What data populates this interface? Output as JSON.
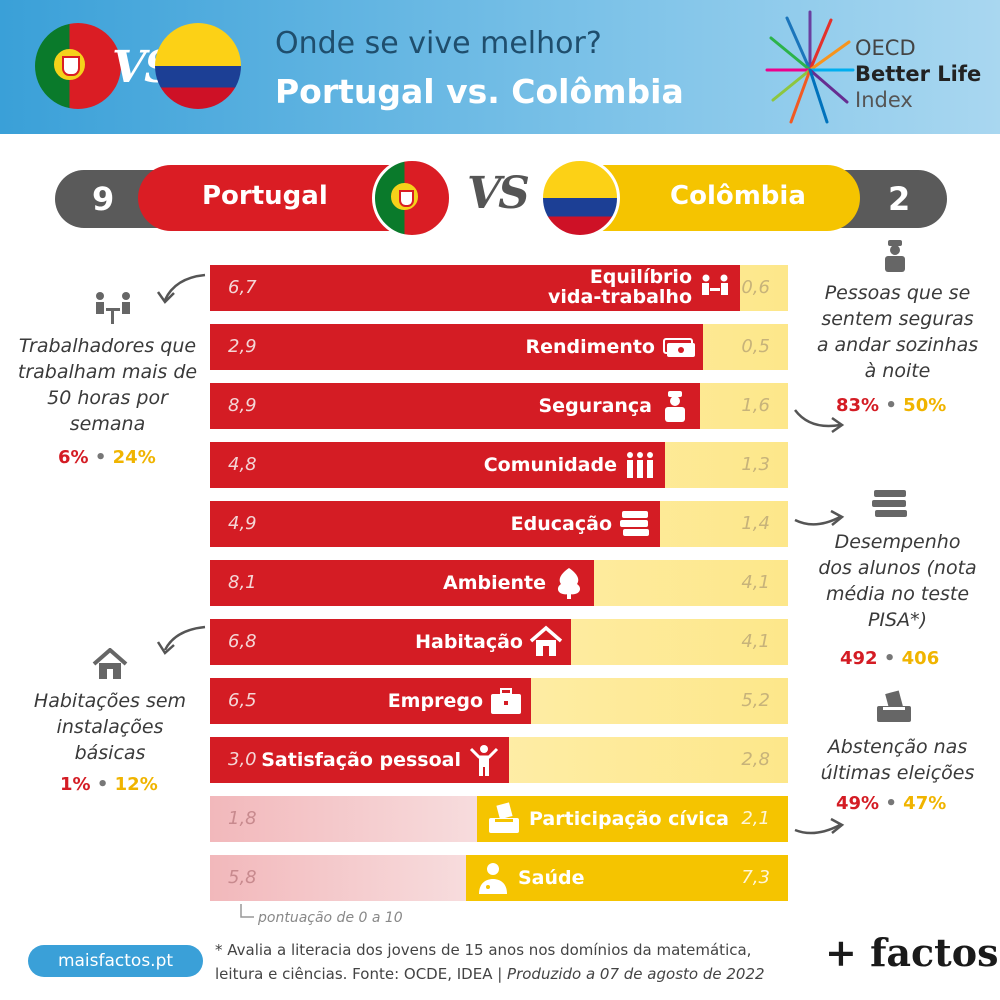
{
  "header": {
    "title": "Onde se vive melhor?",
    "subtitle": "Portugal vs. Colômbia",
    "vs": "VS",
    "oecd_line1": "OECD",
    "oecd_line2": "Better Life",
    "oecd_line3": "Index"
  },
  "score": {
    "left_value": "9",
    "left_country": "Portugal",
    "vs": "VS",
    "right_country": "Colômbia",
    "right_value": "2"
  },
  "rows": [
    {
      "label": "Equilíbrio",
      "label2": "vida-trabalho",
      "pt": "6,7",
      "co": "0,6",
      "pt_score": 6.7,
      "co_score": 0.6,
      "winner": "pt",
      "icon": "work-life-icon"
    },
    {
      "label": "Rendimento",
      "pt": "2,9",
      "co": "0,5",
      "pt_score": 2.9,
      "co_score": 0.5,
      "winner": "pt",
      "icon": "money-icon"
    },
    {
      "label": "Segurança",
      "pt": "8,9",
      "co": "1,6",
      "pt_score": 8.9,
      "co_score": 1.6,
      "winner": "pt",
      "icon": "police-icon"
    },
    {
      "label": "Comunidade",
      "pt": "4,8",
      "co": "1,3",
      "pt_score": 4.8,
      "co_score": 1.3,
      "winner": "pt",
      "icon": "people-icon"
    },
    {
      "label": "Educação",
      "pt": "4,9",
      "co": "1,4",
      "pt_score": 4.9,
      "co_score": 1.4,
      "winner": "pt",
      "icon": "books-icon"
    },
    {
      "label": "Ambiente",
      "pt": "8,1",
      "co": "4,1",
      "pt_score": 8.1,
      "co_score": 4.1,
      "winner": "pt",
      "icon": "tree-icon"
    },
    {
      "label": "Habitação",
      "pt": "6,8",
      "co": "4,1",
      "pt_score": 6.8,
      "co_score": 4.1,
      "winner": "pt",
      "icon": "house-icon"
    },
    {
      "label": "Emprego",
      "pt": "6,5",
      "co": "5,2",
      "pt_score": 6.5,
      "co_score": 5.2,
      "winner": "pt",
      "icon": "briefcase-icon"
    },
    {
      "label": "Satisfação pessoal",
      "pt": "3,0",
      "co": "2,8",
      "pt_score": 3.0,
      "co_score": 2.8,
      "winner": "pt",
      "icon": "person-happy-icon"
    },
    {
      "label": "Participação cívica",
      "pt": "1,8",
      "co": "2,1",
      "pt_score": 1.8,
      "co_score": 2.1,
      "winner": "co",
      "icon": "ballot-icon"
    },
    {
      "label": "Saúde",
      "pt": "5,8",
      "co": "7,3",
      "pt_score": 5.8,
      "co_score": 7.3,
      "winner": "co",
      "icon": "doctor-icon"
    }
  ],
  "annotations": {
    "work": {
      "text": [
        "Trabalhadores que",
        "trabalham mais de",
        "50 horas por",
        "semana"
      ],
      "pt": "6%",
      "co": "24%"
    },
    "safety": {
      "text": [
        "Pessoas que se",
        "sentem seguras",
        "a andar sozinhas",
        "à noite"
      ],
      "pt": "83%",
      "co": "50%"
    },
    "education": {
      "text": [
        "Desempenho",
        "dos alunos (nota",
        "média no teste",
        "PISA*)"
      ],
      "pt": "492",
      "co": "406"
    },
    "housing": {
      "text": [
        "Habitações sem",
        "instalações",
        "básicas"
      ],
      "pt": "1%",
      "co": "12%"
    },
    "vote": {
      "text": [
        "Abstenção nas",
        "últimas eleições"
      ],
      "pt": "49%",
      "co": "47%"
    },
    "separator": "•"
  },
  "scale_note": "pontuação de 0 a 10",
  "footnote_line1": "* Avalia a literacia dos jovens de 15 anos nos domínios da matemática,",
  "footnote_line2a": "leitura e ciências. Fonte: OCDE, IDEA | ",
  "footnote_line2b": "Produzido a 07 de agosto de 2022",
  "site": "maisfactos.pt",
  "brand": "+ factos",
  "colors": {
    "portugal": "#d41c24",
    "colombia": "#f5c400",
    "header": "#3aa0d8"
  }
}
